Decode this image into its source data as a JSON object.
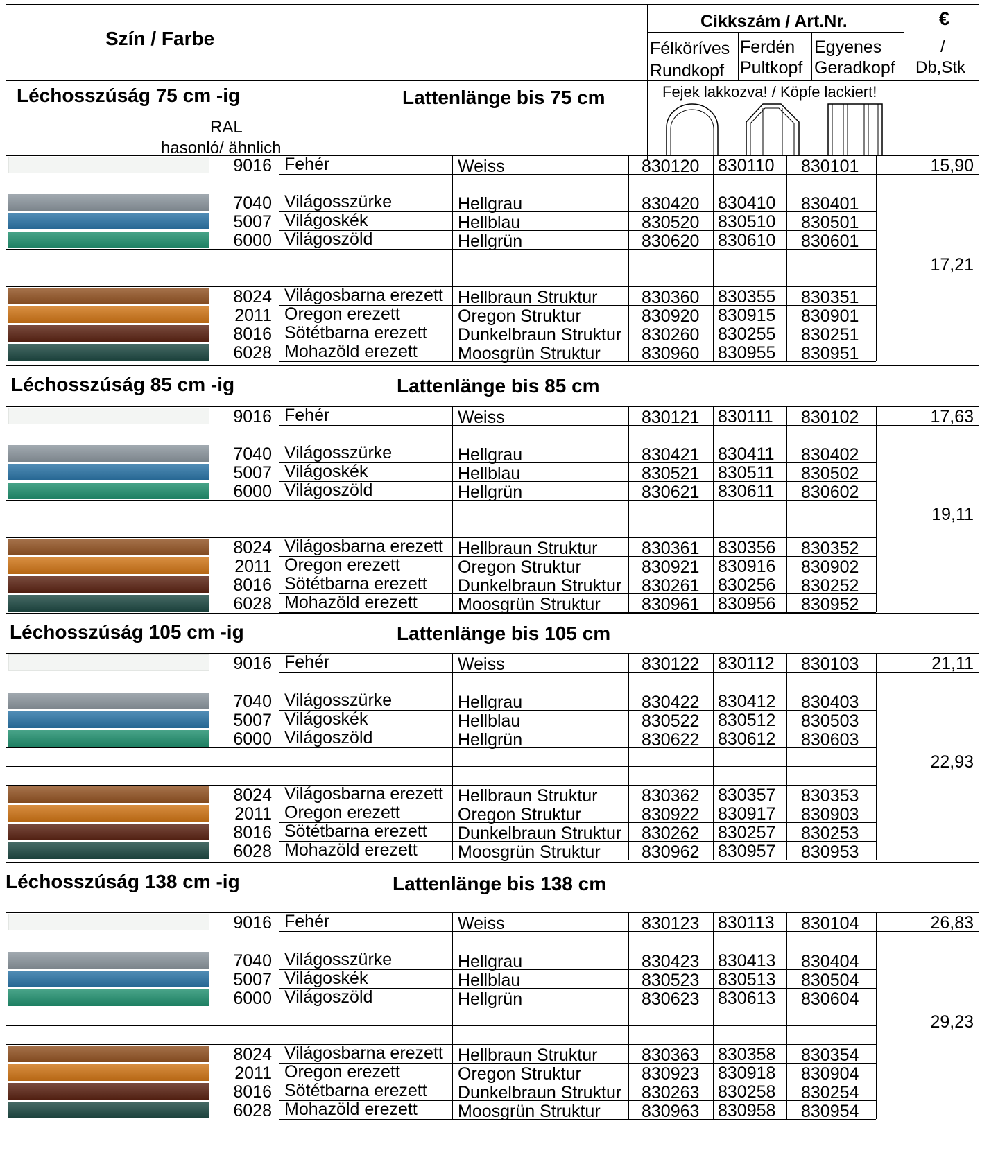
{
  "header": {
    "color_col": "Szín / Farbe",
    "artnr": "Cikkszám / Art.Nr.",
    "currency": "€",
    "unit_slash": "/",
    "unit": "Db,Stk",
    "col1": [
      "Félköríves",
      "Rundkopf"
    ],
    "col2": [
      "Ferdén",
      "Pultkopf"
    ],
    "col3": [
      "Egyenes",
      "Geradkopf"
    ],
    "lacquer": "Fejek lakkozva! / Köpfe lackiert!",
    "ral": "RAL",
    "similar": "hasonló/ ähnlich"
  },
  "swatch_colors": {
    "9016": "#f3f5f3",
    "7040": "#8d979f",
    "5007": "#2b74a6",
    "6000": "#21906f",
    "8024": "#935424",
    "2011": "#cf7517",
    "8016": "#5c2414",
    "6028": "#1f4a44"
  },
  "sections": [
    {
      "title_hu": "Léchosszúság 75 cm -ig",
      "title_de": "Lattenlänge bis 75 cm",
      "white": {
        "ral": "9016",
        "hu": "Fehér",
        "de": "Weiss",
        "a": "830120",
        "b": "830110",
        "c": "830101",
        "price": "15,90"
      },
      "rows": [
        {
          "ral": "7040",
          "hu": "Világosszürke",
          "de": "Hellgrau",
          "a": "830420",
          "b": "830410",
          "c": "830401"
        },
        {
          "ral": "5007",
          "hu": "Világoskék",
          "de": "Hellblau",
          "a": "830520",
          "b": "830510",
          "c": "830501"
        },
        {
          "ral": "6000",
          "hu": "Világoszöld",
          "de": "Hellgrün",
          "a": "830620",
          "b": "830610",
          "c": "830601"
        },
        {
          "ral": "8024",
          "hu": "Világosbarna erezett",
          "de": "Hellbraun Struktur",
          "a": "830360",
          "b": "830355",
          "c": "830351"
        },
        {
          "ral": "2011",
          "hu": "Oregon erezett",
          "de": "Oregon Struktur",
          "a": "830920",
          "b": "830915",
          "c": "830901"
        },
        {
          "ral": "8016",
          "hu": "Sötétbarna erezett",
          "de": "Dunkelbraun Struktur",
          "a": "830260",
          "b": "830255",
          "c": "830251"
        },
        {
          "ral": "6028",
          "hu": "Mohazöld erezett",
          "de": "Moosgrün Struktur",
          "a": "830960",
          "b": "830955",
          "c": "830951"
        }
      ],
      "price": "17,21"
    },
    {
      "title_hu": "Léchosszúság 85 cm -ig",
      "title_de": "Lattenlänge bis 85 cm",
      "white": {
        "ral": "9016",
        "hu": "Fehér",
        "de": "Weiss",
        "a": "830121",
        "b": "830111",
        "c": "830102",
        "price": "17,63"
      },
      "rows": [
        {
          "ral": "7040",
          "hu": "Világosszürke",
          "de": "Hellgrau",
          "a": "830421",
          "b": "830411",
          "c": "830402"
        },
        {
          "ral": "5007",
          "hu": "Világoskék",
          "de": "Hellblau",
          "a": "830521",
          "b": "830511",
          "c": "830502"
        },
        {
          "ral": "6000",
          "hu": "Világoszöld",
          "de": "Hellgrün",
          "a": "830621",
          "b": "830611",
          "c": "830602"
        },
        {
          "ral": "8024",
          "hu": "Világosbarna erezett",
          "de": "Hellbraun Struktur",
          "a": "830361",
          "b": "830356",
          "c": "830352"
        },
        {
          "ral": "2011",
          "hu": "Oregon erezett",
          "de": "Oregon Struktur",
          "a": "830921",
          "b": "830916",
          "c": "830902"
        },
        {
          "ral": "8016",
          "hu": "Sötétbarna erezett",
          "de": "Dunkelbraun Struktur",
          "a": "830261",
          "b": "830256",
          "c": "830252"
        },
        {
          "ral": "6028",
          "hu": "Mohazöld erezett",
          "de": "Moosgrün Struktur",
          "a": "830961",
          "b": "830956",
          "c": "830952"
        }
      ],
      "price": "19,11"
    },
    {
      "title_hu": "Léchosszúság 105 cm -ig",
      "title_de": "Lattenlänge bis 105 cm",
      "white": {
        "ral": "9016",
        "hu": "Fehér",
        "de": "Weiss",
        "a": "830122",
        "b": "830112",
        "c": "830103",
        "price": "21,11"
      },
      "rows": [
        {
          "ral": "7040",
          "hu": "Világosszürke",
          "de": "Hellgrau",
          "a": "830422",
          "b": "830412",
          "c": "830403"
        },
        {
          "ral": "5007",
          "hu": "Világoskék",
          "de": "Hellblau",
          "a": "830522",
          "b": "830512",
          "c": "830503"
        },
        {
          "ral": "6000",
          "hu": "Világoszöld",
          "de": "Hellgrün",
          "a": "830622",
          "b": "830612",
          "c": "830603"
        },
        {
          "ral": "8024",
          "hu": "Világosbarna erezett",
          "de": "Hellbraun Struktur",
          "a": "830362",
          "b": "830357",
          "c": "830353"
        },
        {
          "ral": "2011",
          "hu": "Oregon erezett",
          "de": "Oregon Struktur",
          "a": "830922",
          "b": "830917",
          "c": "830903"
        },
        {
          "ral": "8016",
          "hu": "Sötétbarna erezett",
          "de": "Dunkelbraun Struktur",
          "a": "830262",
          "b": "830257",
          "c": "830253"
        },
        {
          "ral": "6028",
          "hu": "Mohazöld erezett",
          "de": "Moosgrün Struktur",
          "a": "830962",
          "b": "830957",
          "c": "830953"
        }
      ],
      "price": "22,93"
    },
    {
      "title_hu": "Léchosszúság 138 cm -ig",
      "title_de": "Lattenlänge bis 138 cm",
      "white": {
        "ral": "9016",
        "hu": "Fehér",
        "de": "Weiss",
        "a": "830123",
        "b": "830113",
        "c": "830104",
        "price": "26,83"
      },
      "rows": [
        {
          "ral": "7040",
          "hu": "Világosszürke",
          "de": "Hellgrau",
          "a": "830423",
          "b": "830413",
          "c": "830404"
        },
        {
          "ral": "5007",
          "hu": "Világoskék",
          "de": "Hellblau",
          "a": "830523",
          "b": "830513",
          "c": "830504"
        },
        {
          "ral": "6000",
          "hu": "Világoszöld",
          "de": "Hellgrün",
          "a": "830623",
          "b": "830613",
          "c": "830604"
        },
        {
          "ral": "8024",
          "hu": "Világosbarna erezett",
          "de": "Hellbraun Struktur",
          "a": "830363",
          "b": "830358",
          "c": "830354"
        },
        {
          "ral": "2011",
          "hu": "Oregon erezett",
          "de": "Oregon Struktur",
          "a": "830923",
          "b": "830918",
          "c": "830904"
        },
        {
          "ral": "8016",
          "hu": "Sötétbarna erezett",
          "de": "Dunkelbraun Struktur",
          "a": "830263",
          "b": "830258",
          "c": "830254"
        },
        {
          "ral": "6028",
          "hu": "Mohazöld erezett",
          "de": "Moosgrün Struktur",
          "a": "830963",
          "b": "830958",
          "c": "830954"
        }
      ],
      "price": "29,23"
    }
  ]
}
